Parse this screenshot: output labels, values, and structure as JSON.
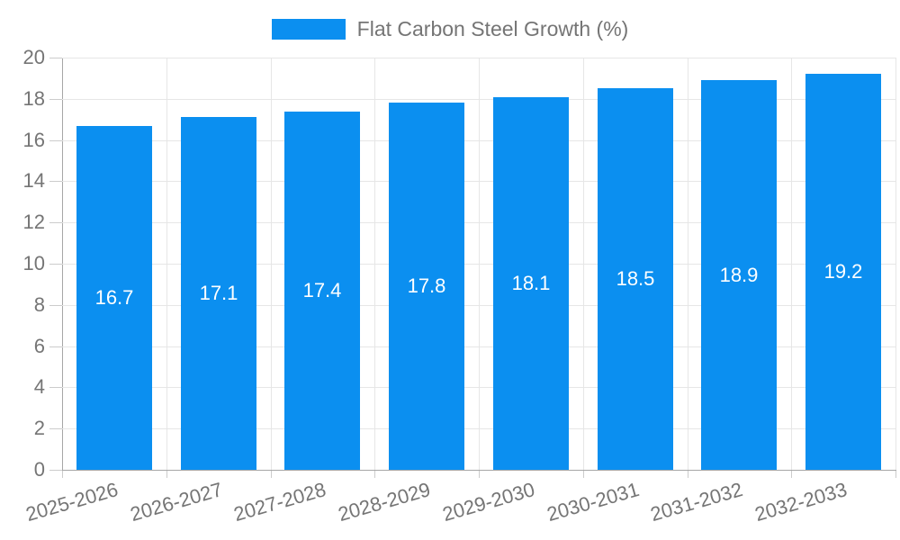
{
  "chart_data": {
    "type": "bar",
    "title": "",
    "xlabel": "",
    "ylabel": "",
    "legend_position": "top",
    "grid": true,
    "categories": [
      "2025-2026",
      "2026-2027",
      "2027-2028",
      "2028-2029",
      "2029-2030",
      "2030-2031",
      "2031-2032",
      "2032-2033"
    ],
    "series": [
      {
        "name": "Flat Carbon Steel Growth (%)",
        "color": "#0b8ff0",
        "values": [
          16.7,
          17.1,
          17.4,
          17.8,
          18.1,
          18.5,
          18.9,
          19.2
        ],
        "value_labels": [
          "16.7",
          "17.1",
          "17.4",
          "17.8",
          "18.1",
          "18.5",
          "18.9",
          "19.2"
        ]
      }
    ],
    "ylim": [
      0,
      20
    ],
    "yticks": [
      0,
      2,
      4,
      6,
      8,
      10,
      12,
      14,
      16,
      18,
      20
    ],
    "x_label_rotation_deg": -16,
    "colors": {
      "bar": "#0b8ff0",
      "axis_text": "#757575",
      "legend_text": "#757575",
      "value_label_text": "#ffffff",
      "gridline": "#e6e6e6",
      "axis_line": "#a6a6a6",
      "tick_mark": "#cccccc",
      "background": "#ffffff"
    }
  }
}
